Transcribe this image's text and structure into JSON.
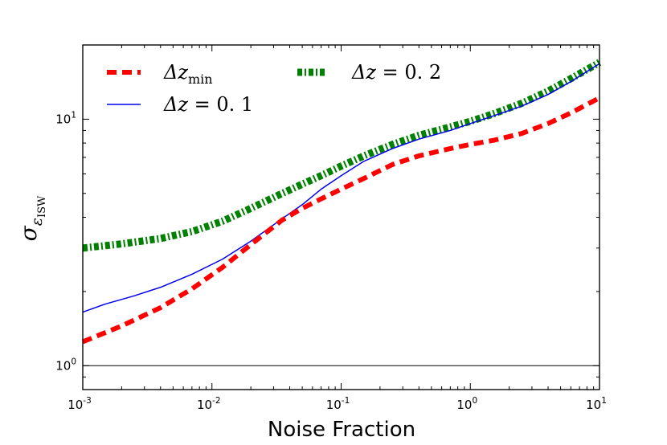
{
  "chart_data": {
    "type": "line",
    "title": "",
    "xlabel": "Noise Fraction",
    "ylabel": {
      "base": "σ",
      "sub": "ε",
      "subsub": "ISW"
    },
    "xscale": "log",
    "yscale": "log",
    "xlim": [
      0.001,
      10
    ],
    "ylim": [
      0.8,
      20
    ],
    "xticks": [
      {
        "value": 0.001,
        "base": "10",
        "exp": "-3"
      },
      {
        "value": 0.01,
        "base": "10",
        "exp": "-2"
      },
      {
        "value": 0.1,
        "base": "10",
        "exp": "-1"
      },
      {
        "value": 1,
        "base": "10",
        "exp": "0"
      },
      {
        "value": 10,
        "base": "10",
        "exp": "1"
      }
    ],
    "yticks": [
      {
        "value": 1,
        "base": "10",
        "exp": "0"
      },
      {
        "value": 10,
        "base": "10",
        "exp": "1"
      }
    ],
    "reference_line": {
      "y": 1,
      "color": "#000000"
    },
    "series": [
      {
        "name": "Δz_min",
        "label_base": "Δz",
        "label_sub": "min",
        "color": "#ff0000",
        "style": "dashed",
        "x": [
          0.001,
          0.002,
          0.004,
          0.007,
          0.012,
          0.02,
          0.035,
          0.05,
          0.07,
          0.1,
          0.15,
          0.25,
          0.4,
          0.7,
          1.0,
          1.5,
          2.5,
          4,
          6,
          10
        ],
        "y": [
          1.25,
          1.45,
          1.72,
          2.05,
          2.5,
          3.1,
          3.9,
          4.35,
          4.75,
          5.2,
          5.75,
          6.55,
          7.1,
          7.6,
          7.9,
          8.2,
          8.75,
          9.6,
          10.6,
          12.2
        ]
      },
      {
        "name": "Δz = 0.1",
        "label_base": "Δz",
        "label_eq": " = 0. 1",
        "color": "#0000ee",
        "style": "solid",
        "x": [
          0.001,
          0.0015,
          0.0025,
          0.004,
          0.007,
          0.012,
          0.02,
          0.035,
          0.05,
          0.07,
          0.1,
          0.15,
          0.25,
          0.4,
          0.7,
          1.0,
          1.5,
          2.5,
          4,
          6,
          10
        ],
        "y": [
          1.65,
          1.78,
          1.92,
          2.08,
          2.35,
          2.7,
          3.2,
          3.95,
          4.5,
          5.2,
          5.9,
          6.75,
          7.6,
          8.3,
          9.0,
          9.6,
          10.3,
          11.3,
          12.6,
          14.2,
          16.8
        ]
      },
      {
        "name": "Δz = 0.2",
        "label_base": "Δz",
        "label_eq": " = 0. 2",
        "color": "#008000",
        "style": "dashdot",
        "x": [
          0.001,
          0.002,
          0.004,
          0.007,
          0.012,
          0.02,
          0.035,
          0.05,
          0.07,
          0.1,
          0.15,
          0.25,
          0.4,
          0.7,
          1.0,
          1.5,
          2.5,
          4,
          6,
          10
        ],
        "y": [
          3.0,
          3.12,
          3.28,
          3.5,
          3.85,
          4.35,
          5.0,
          5.45,
          5.9,
          6.45,
          7.1,
          7.9,
          8.6,
          9.3,
          9.8,
          10.5,
          11.6,
          13.0,
          14.6,
          17.0
        ]
      }
    ],
    "legend": {
      "position": "top-left",
      "columns": 2
    }
  }
}
